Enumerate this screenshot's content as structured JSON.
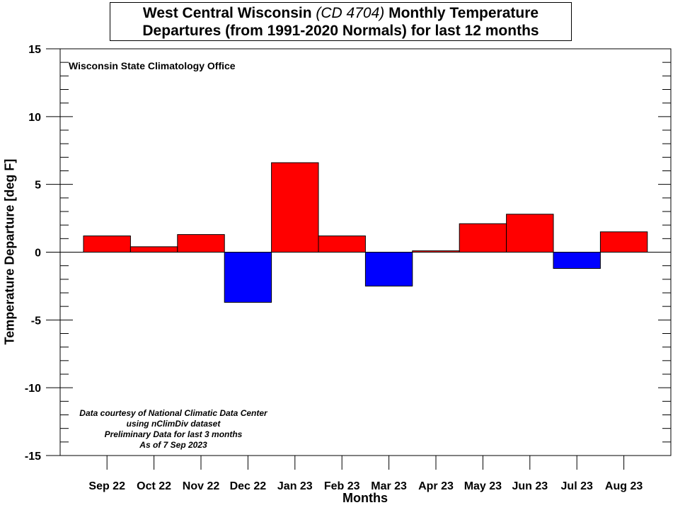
{
  "chart_data": {
    "type": "bar",
    "title": {
      "line1_prefix": "West Central Wisconsin ",
      "line1_italic": "(CD 4704)",
      "line1_suffix": " Monthly Temperature",
      "line2": "Departures (from 1991-2020 Normals) for last 12 months"
    },
    "source_label": "Wisconsin State Climatology Office",
    "notes": [
      "Data courtesy of National Climatic Data Center",
      "using nClimDiv dataset",
      "Preliminary Data for last 3 months",
      "As of 7 Sep 2023"
    ],
    "xlabel": "Months",
    "ylabel": "Temperature Departure [deg F]",
    "categories": [
      "Sep 22",
      "Oct 22",
      "Nov 22",
      "Dec 22",
      "Jan 23",
      "Feb 23",
      "Mar 23",
      "Apr 23",
      "May 23",
      "Jun 23",
      "Jul 23",
      "Aug 23"
    ],
    "values": [
      1.2,
      0.4,
      1.3,
      -3.7,
      6.6,
      1.2,
      -2.5,
      0.1,
      2.1,
      2.8,
      -1.2,
      1.5
    ],
    "ylim": [
      -15,
      15
    ],
    "yticks": [
      "-15",
      "-10",
      "-5",
      "0",
      "5",
      "10",
      "15"
    ],
    "colors": {
      "positive": "#ff0000",
      "negative": "#0000ff"
    },
    "grid": false
  }
}
